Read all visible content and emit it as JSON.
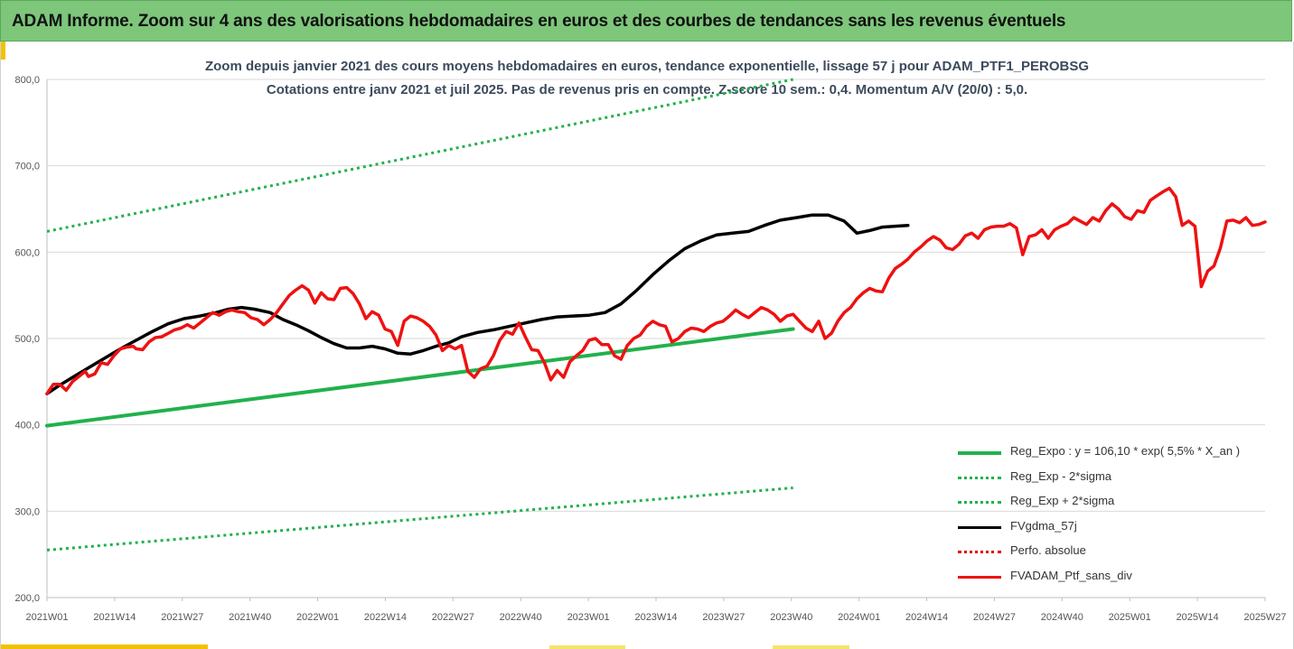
{
  "header": {
    "title": "ADAM Informe. Zoom sur 4 ans des valorisations hebdomadaires en euros et des courbes de tendances sans les revenus éventuels"
  },
  "chart_data": {
    "type": "line",
    "title": "Zoom depuis janvier 2021 des cours moyens hebdomadaires  en euros, tendance exponentielle, lissage 57 j pour ADAM_PTF1_PEROBSG",
    "subtitle": "Cotations  entre janv 2021 et juil 2025. Pas de revenus pris en compte. Z-score 10 sem.: 0,4. Momentum  A/V (20/0) : 5,0.",
    "ylim": [
      200,
      800
    ],
    "y_ticks": [
      "200,0",
      "300,0",
      "400,0",
      "500,0",
      "600,0",
      "700,0",
      "800,0"
    ],
    "x_ticks": [
      "2021W01",
      "2021W14",
      "2021W27",
      "2021W40",
      "2022W01",
      "2022W14",
      "2022W27",
      "2022W40",
      "2023W01",
      "2023W14",
      "2023W27",
      "2023W40",
      "2024W01",
      "2024W14",
      "2024W27",
      "2024W40",
      "2025W01",
      "2025W14",
      "2025W27"
    ],
    "grid": "horizontal",
    "legend_position": "bottom-right",
    "series": [
      {
        "name": "Reg_Expo : y = 106,10 * exp( 5,5% *  X_an )",
        "color": "#22b14c",
        "style": "solid",
        "points": [
          [
            0,
            399
          ],
          [
            234,
            511
          ]
        ]
      },
      {
        "name": "Reg_Exp - 2*sigma",
        "color": "#22b14c",
        "style": "dotted",
        "points": [
          [
            0,
            624
          ],
          [
            234,
            800
          ]
        ]
      },
      {
        "name": "Reg_Exp + 2*sigma",
        "color": "#22b14c",
        "style": "dotted",
        "points": [
          [
            0,
            255
          ],
          [
            234,
            327
          ]
        ]
      },
      {
        "name": "FVgdma_57j",
        "color": "#000000",
        "style": "solid",
        "points": [
          [
            0,
            436
          ],
          [
            4,
            446
          ],
          [
            8,
            455
          ],
          [
            13,
            466
          ],
          [
            18,
            477
          ],
          [
            23,
            488
          ],
          [
            28,
            498
          ],
          [
            33,
            508
          ],
          [
            38,
            517
          ],
          [
            43,
            523
          ],
          [
            48,
            526
          ],
          [
            53,
            530
          ],
          [
            57,
            534
          ],
          [
            61,
            536
          ],
          [
            65,
            534
          ],
          [
            70,
            530
          ],
          [
            74,
            522
          ],
          [
            78,
            516
          ],
          [
            82,
            509
          ],
          [
            86,
            501
          ],
          [
            90,
            494
          ],
          [
            94,
            489
          ],
          [
            98,
            489
          ],
          [
            102,
            491
          ],
          [
            106,
            488
          ],
          [
            110,
            483
          ],
          [
            114,
            482
          ],
          [
            118,
            486
          ],
          [
            122,
            491
          ],
          [
            126,
            495
          ],
          [
            130,
            502
          ],
          [
            135,
            507
          ],
          [
            140,
            510
          ],
          [
            145,
            514
          ],
          [
            150,
            518
          ],
          [
            155,
            522
          ],
          [
            160,
            525
          ],
          [
            165,
            526
          ],
          [
            170,
            527
          ],
          [
            175,
            530
          ],
          [
            180,
            540
          ],
          [
            185,
            556
          ],
          [
            190,
            574
          ],
          [
            195,
            590
          ],
          [
            200,
            604
          ],
          [
            205,
            613
          ],
          [
            210,
            620
          ],
          [
            215,
            622
          ],
          [
            220,
            624
          ],
          [
            225,
            631
          ],
          [
            230,
            637
          ],
          [
            235,
            640
          ],
          [
            240,
            643
          ],
          [
            245,
            643
          ],
          [
            250,
            636
          ],
          [
            254,
            622
          ],
          [
            258,
            625
          ],
          [
            262,
            629
          ],
          [
            266,
            630
          ],
          [
            270,
            631
          ]
        ]
      },
      {
        "name": "Perfo. absolue",
        "color": "#e00000",
        "style": "dotted",
        "points": []
      },
      {
        "name": "FVADAM_Ptf_sans_div",
        "color": "#ee1111",
        "style": "solid",
        "points": [
          [
            0,
            436
          ],
          [
            2,
            447
          ],
          [
            4,
            447
          ],
          [
            6,
            440
          ],
          [
            8,
            450
          ],
          [
            10,
            456
          ],
          [
            12,
            462
          ],
          [
            13,
            456
          ],
          [
            15,
            459
          ],
          [
            17,
            472
          ],
          [
            19,
            470
          ],
          [
            21,
            480
          ],
          [
            23,
            488
          ],
          [
            25,
            490
          ],
          [
            27,
            491
          ],
          [
            28,
            488
          ],
          [
            30,
            487
          ],
          [
            32,
            496
          ],
          [
            34,
            501
          ],
          [
            36,
            502
          ],
          [
            38,
            506
          ],
          [
            40,
            510
          ],
          [
            42,
            512
          ],
          [
            44,
            516
          ],
          [
            46,
            512
          ],
          [
            48,
            518
          ],
          [
            50,
            524
          ],
          [
            52,
            530
          ],
          [
            54,
            527
          ],
          [
            56,
            531
          ],
          [
            58,
            533
          ],
          [
            60,
            531
          ],
          [
            62,
            530
          ],
          [
            64,
            524
          ],
          [
            66,
            522
          ],
          [
            68,
            516
          ],
          [
            70,
            522
          ],
          [
            72,
            530
          ],
          [
            74,
            540
          ],
          [
            76,
            550
          ],
          [
            78,
            556
          ],
          [
            80,
            561
          ],
          [
            82,
            556
          ],
          [
            84,
            541
          ],
          [
            86,
            553
          ],
          [
            88,
            546
          ],
          [
            90,
            545
          ],
          [
            92,
            558
          ],
          [
            94,
            559
          ],
          [
            96,
            552
          ],
          [
            98,
            540
          ],
          [
            100,
            523
          ],
          [
            102,
            531
          ],
          [
            104,
            527
          ],
          [
            106,
            511
          ],
          [
            108,
            508
          ],
          [
            110,
            492
          ],
          [
            112,
            520
          ],
          [
            114,
            526
          ],
          [
            116,
            524
          ],
          [
            118,
            520
          ],
          [
            120,
            514
          ],
          [
            122,
            504
          ],
          [
            124,
            486
          ],
          [
            126,
            492
          ],
          [
            128,
            488
          ],
          [
            130,
            492
          ],
          [
            132,
            462
          ],
          [
            134,
            455
          ],
          [
            136,
            465
          ],
          [
            138,
            468
          ],
          [
            140,
            480
          ],
          [
            142,
            498
          ],
          [
            144,
            508
          ],
          [
            146,
            505
          ],
          [
            148,
            518
          ],
          [
            150,
            502
          ],
          [
            152,
            487
          ],
          [
            154,
            486
          ],
          [
            156,
            472
          ],
          [
            158,
            452
          ],
          [
            160,
            463
          ],
          [
            162,
            455
          ],
          [
            164,
            473
          ],
          [
            166,
            480
          ],
          [
            168,
            486
          ],
          [
            170,
            498
          ],
          [
            172,
            500
          ],
          [
            174,
            493
          ],
          [
            176,
            493
          ],
          [
            178,
            480
          ],
          [
            180,
            476
          ],
          [
            182,
            492
          ],
          [
            184,
            500
          ],
          [
            186,
            504
          ],
          [
            188,
            514
          ],
          [
            190,
            520
          ],
          [
            192,
            516
          ],
          [
            194,
            514
          ],
          [
            196,
            496
          ],
          [
            198,
            500
          ],
          [
            200,
            508
          ],
          [
            202,
            512
          ],
          [
            204,
            511
          ],
          [
            206,
            508
          ],
          [
            208,
            514
          ],
          [
            210,
            518
          ],
          [
            212,
            520
          ],
          [
            214,
            526
          ],
          [
            216,
            533
          ],
          [
            218,
            528
          ],
          [
            220,
            524
          ],
          [
            222,
            530
          ],
          [
            224,
            536
          ],
          [
            226,
            533
          ],
          [
            228,
            528
          ],
          [
            230,
            520
          ],
          [
            232,
            526
          ],
          [
            234,
            528
          ],
          [
            236,
            520
          ],
          [
            238,
            512
          ],
          [
            240,
            508
          ],
          [
            242,
            520
          ],
          [
            244,
            500
          ],
          [
            246,
            506
          ],
          [
            248,
            520
          ],
          [
            250,
            530
          ],
          [
            252,
            536
          ],
          [
            254,
            546
          ],
          [
            256,
            553
          ],
          [
            258,
            558
          ],
          [
            260,
            555
          ],
          [
            262,
            554
          ],
          [
            264,
            570
          ],
          [
            266,
            581
          ],
          [
            268,
            586
          ],
          [
            270,
            592
          ],
          [
            272,
            600
          ],
          [
            274,
            606
          ],
          [
            276,
            613
          ],
          [
            278,
            618
          ],
          [
            280,
            614
          ],
          [
            282,
            605
          ],
          [
            284,
            603
          ],
          [
            286,
            609
          ],
          [
            288,
            619
          ],
          [
            290,
            622
          ],
          [
            292,
            616
          ],
          [
            294,
            626
          ],
          [
            296,
            629
          ],
          [
            298,
            630
          ],
          [
            300,
            630
          ],
          [
            302,
            633
          ],
          [
            304,
            628
          ],
          [
            306,
            597
          ],
          [
            308,
            618
          ],
          [
            310,
            620
          ],
          [
            312,
            626
          ],
          [
            314,
            616
          ],
          [
            316,
            626
          ],
          [
            318,
            630
          ],
          [
            320,
            633
          ],
          [
            322,
            640
          ],
          [
            324,
            636
          ],
          [
            326,
            632
          ],
          [
            328,
            640
          ],
          [
            330,
            636
          ],
          [
            332,
            648
          ],
          [
            334,
            656
          ],
          [
            336,
            650
          ],
          [
            338,
            641
          ],
          [
            340,
            638
          ],
          [
            342,
            648
          ],
          [
            344,
            646
          ],
          [
            346,
            660
          ],
          [
            348,
            665
          ],
          [
            350,
            670
          ],
          [
            352,
            674
          ],
          [
            354,
            664
          ],
          [
            356,
            631
          ],
          [
            358,
            636
          ],
          [
            360,
            630
          ],
          [
            362,
            560
          ],
          [
            364,
            578
          ],
          [
            366,
            584
          ],
          [
            368,
            605
          ],
          [
            370,
            636
          ],
          [
            372,
            637
          ],
          [
            374,
            634
          ],
          [
            376,
            640
          ],
          [
            378,
            631
          ],
          [
            380,
            632
          ],
          [
            382,
            635
          ]
        ]
      }
    ]
  }
}
